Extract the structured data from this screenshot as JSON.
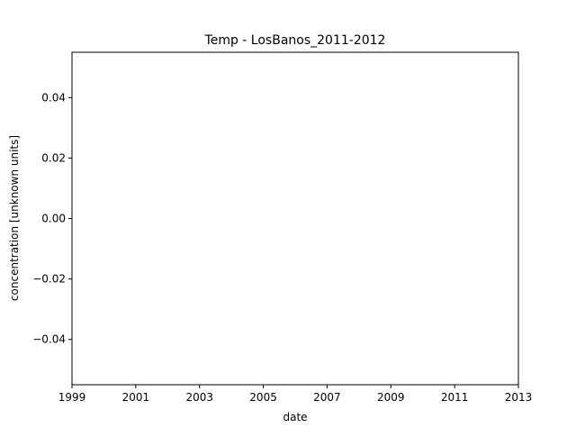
{
  "chart_data": {
    "type": "line",
    "title": "Temp - LosBanos_2011-2012",
    "xlabel": "date",
    "ylabel": "concentration [unknown units]",
    "x_axis": "date",
    "xlim": [
      "1999",
      "2013"
    ],
    "ylim": [
      -0.055,
      0.055
    ],
    "x_ticks": [
      "1999",
      "2001",
      "2003",
      "2005",
      "2007",
      "2009",
      "2011",
      "2013"
    ],
    "y_ticks": [
      {
        "value": 0.04,
        "label": "0.04"
      },
      {
        "value": 0.02,
        "label": "0.02"
      },
      {
        "value": 0.0,
        "label": "0.00"
      },
      {
        "value": -0.02,
        "label": "−0.02"
      },
      {
        "value": -0.04,
        "label": "−0.04"
      }
    ],
    "series": [],
    "grid": false,
    "legend": "none"
  }
}
